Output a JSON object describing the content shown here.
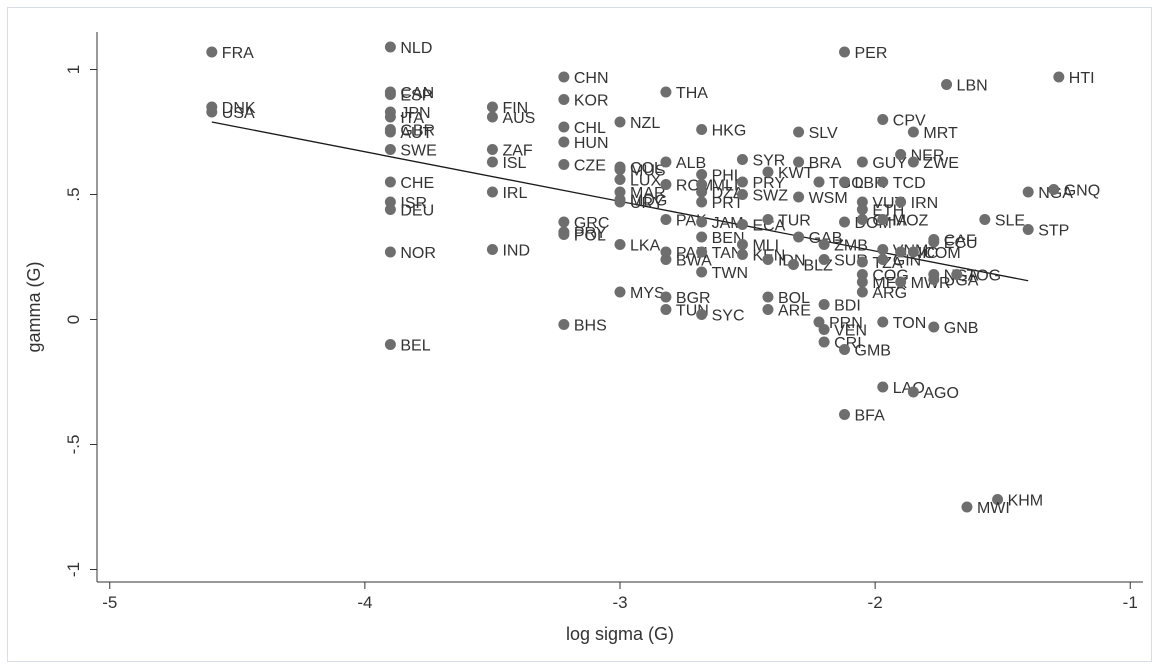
{
  "chart_data": {
    "type": "scatter",
    "xlabel": "log sigma (G)",
    "ylabel": "gamma (G)",
    "xlim": [
      -5.05,
      -0.95
    ],
    "ylim": [
      -1.05,
      1.15
    ],
    "x_ticks": [
      -5,
      -4,
      -3,
      -2,
      -1
    ],
    "x_tick_labels": [
      "-5",
      "-4",
      "-3",
      "-2",
      "-1"
    ],
    "y_ticks": [
      -1,
      -0.5,
      0,
      0.5,
      1
    ],
    "y_tick_labels": [
      "-1",
      "-.5",
      "0",
      ".5",
      "1"
    ],
    "marker_color": "#6e6e6e",
    "line_color": "#1a1a1a",
    "grid": false,
    "fit_line": {
      "x": [
        -4.6,
        -1.4
      ],
      "y": [
        0.79,
        0.155
      ]
    },
    "points": [
      {
        "label": "FRA",
        "x": -4.6,
        "y": 1.07
      },
      {
        "label": "DNK",
        "x": -4.6,
        "y": 0.85
      },
      {
        "label": "USA",
        "x": -4.6,
        "y": 0.83
      },
      {
        "label": "NLD",
        "x": -3.9,
        "y": 1.09
      },
      {
        "label": "CAN",
        "x": -3.9,
        "y": 0.91
      },
      {
        "label": "ESP",
        "x": -3.9,
        "y": 0.9
      },
      {
        "label": "JPN",
        "x": -3.9,
        "y": 0.83
      },
      {
        "label": "ITA",
        "x": -3.9,
        "y": 0.81
      },
      {
        "label": "GBR",
        "x": -3.9,
        "y": 0.76
      },
      {
        "label": "AUT",
        "x": -3.9,
        "y": 0.75
      },
      {
        "label": "SWE",
        "x": -3.9,
        "y": 0.68
      },
      {
        "label": "CHE",
        "x": -3.9,
        "y": 0.55
      },
      {
        "label": "ISR",
        "x": -3.9,
        "y": 0.47
      },
      {
        "label": "DEU",
        "x": -3.9,
        "y": 0.44
      },
      {
        "label": "NOR",
        "x": -3.9,
        "y": 0.27
      },
      {
        "label": "BEL",
        "x": -3.9,
        "y": -0.1
      },
      {
        "label": "FIN",
        "x": -3.5,
        "y": 0.85
      },
      {
        "label": "AUS",
        "x": -3.5,
        "y": 0.81
      },
      {
        "label": "ZAF",
        "x": -3.5,
        "y": 0.68
      },
      {
        "label": "ISL",
        "x": -3.5,
        "y": 0.63
      },
      {
        "label": "IRL",
        "x": -3.5,
        "y": 0.51
      },
      {
        "label": "IND",
        "x": -3.5,
        "y": 0.28
      },
      {
        "label": "CHN",
        "x": -3.22,
        "y": 0.97
      },
      {
        "label": "KOR",
        "x": -3.22,
        "y": 0.88
      },
      {
        "label": "CHL",
        "x": -3.22,
        "y": 0.77
      },
      {
        "label": "HUN",
        "x": -3.22,
        "y": 0.71
      },
      {
        "label": "CZE",
        "x": -3.22,
        "y": 0.62
      },
      {
        "label": "GRC",
        "x": -3.22,
        "y": 0.39
      },
      {
        "label": "PRY",
        "x": -3.22,
        "y": 0.35
      },
      {
        "label": "POL",
        "x": -3.22,
        "y": 0.34
      },
      {
        "label": "BHS",
        "x": -3.22,
        "y": -0.02
      },
      {
        "label": "NZL",
        "x": -3.0,
        "y": 0.79
      },
      {
        "label": "COL",
        "x": -3.0,
        "y": 0.61
      },
      {
        "label": "MUS",
        "x": -3.0,
        "y": 0.6
      },
      {
        "label": "LUX",
        "x": -3.0,
        "y": 0.56
      },
      {
        "label": "MAR",
        "x": -3.0,
        "y": 0.51
      },
      {
        "label": "MDG",
        "x": -3.0,
        "y": 0.48
      },
      {
        "label": "URY",
        "x": -3.0,
        "y": 0.47
      },
      {
        "label": "LKA",
        "x": -3.0,
        "y": 0.3
      },
      {
        "label": "MYS",
        "x": -3.0,
        "y": 0.11
      },
      {
        "label": "THA",
        "x": -2.82,
        "y": 0.91
      },
      {
        "label": "ALB",
        "x": -2.82,
        "y": 0.63
      },
      {
        "label": "ROM",
        "x": -2.82,
        "y": 0.54
      },
      {
        "label": "PAK",
        "x": -2.82,
        "y": 0.4
      },
      {
        "label": "PAN",
        "x": -2.82,
        "y": 0.27
      },
      {
        "label": "BWA",
        "x": -2.82,
        "y": 0.24
      },
      {
        "label": "BGR",
        "x": -2.82,
        "y": 0.09
      },
      {
        "label": "TUN",
        "x": -2.82,
        "y": 0.04
      },
      {
        "label": "HKG",
        "x": -2.68,
        "y": 0.76
      },
      {
        "label": "PHL",
        "x": -2.68,
        "y": 0.58
      },
      {
        "label": "MLI",
        "x": -2.68,
        "y": 0.54
      },
      {
        "label": "DZA",
        "x": -2.68,
        "y": 0.51
      },
      {
        "label": "PRT",
        "x": -2.68,
        "y": 0.47
      },
      {
        "label": "JAM",
        "x": -2.68,
        "y": 0.39
      },
      {
        "label": "BEN",
        "x": -2.68,
        "y": 0.33
      },
      {
        "label": "TAN",
        "x": -2.68,
        "y": 0.27
      },
      {
        "label": "TWN",
        "x": -2.68,
        "y": 0.19
      },
      {
        "label": "SYC",
        "x": -2.68,
        "y": 0.02
      },
      {
        "label": "SYR",
        "x": -2.52,
        "y": 0.64
      },
      {
        "label": "PRY",
        "x": -2.52,
        "y": 0.55
      },
      {
        "label": "SWZ",
        "x": -2.52,
        "y": 0.5
      },
      {
        "label": "ECA",
        "x": -2.52,
        "y": 0.38
      },
      {
        "label": "MLI",
        "x": -2.52,
        "y": 0.3
      },
      {
        "label": "KEN",
        "x": -2.52,
        "y": 0.26
      },
      {
        "label": "SLV",
        "x": -2.3,
        "y": 0.75
      },
      {
        "label": "KWT",
        "x": -2.42,
        "y": 0.59
      },
      {
        "label": "BRA",
        "x": -2.3,
        "y": 0.63
      },
      {
        "label": "TUR",
        "x": -2.42,
        "y": 0.4
      },
      {
        "label": "GAB",
        "x": -2.3,
        "y": 0.33
      },
      {
        "label": "IDN",
        "x": -2.42,
        "y": 0.24
      },
      {
        "label": "BLZ",
        "x": -2.32,
        "y": 0.22
      },
      {
        "label": "BOL",
        "x": -2.42,
        "y": 0.09
      },
      {
        "label": "ARE",
        "x": -2.42,
        "y": 0.04
      },
      {
        "label": "PRN",
        "x": -2.22,
        "y": -0.01
      },
      {
        "label": "TGO",
        "x": -2.22,
        "y": 0.55
      },
      {
        "label": "WSM",
        "x": -2.3,
        "y": 0.49
      },
      {
        "label": "ZMB",
        "x": -2.2,
        "y": 0.3
      },
      {
        "label": "SUR",
        "x": -2.2,
        "y": 0.24
      },
      {
        "label": "BDI",
        "x": -2.2,
        "y": 0.06
      },
      {
        "label": "VEN",
        "x": -2.2,
        "y": -0.04
      },
      {
        "label": "CRI",
        "x": -2.2,
        "y": -0.09
      },
      {
        "label": "PER",
        "x": -2.12,
        "y": 1.07
      },
      {
        "label": "LBR",
        "x": -2.12,
        "y": 0.55
      },
      {
        "label": "DOM",
        "x": -2.12,
        "y": 0.39
      },
      {
        "label": "GMB",
        "x": -2.12,
        "y": -0.12
      },
      {
        "label": "BFA",
        "x": -2.12,
        "y": -0.38
      },
      {
        "label": "GUY",
        "x": -2.05,
        "y": 0.63
      },
      {
        "label": "VUT",
        "x": -2.05,
        "y": 0.47
      },
      {
        "label": "ETH",
        "x": -2.05,
        "y": 0.44
      },
      {
        "label": "GHA",
        "x": -2.05,
        "y": 0.4
      },
      {
        "label": "TZA",
        "x": -2.05,
        "y": 0.23
      },
      {
        "label": "COG",
        "x": -2.05,
        "y": 0.18
      },
      {
        "label": "MEX",
        "x": -2.05,
        "y": 0.15
      },
      {
        "label": "ARG",
        "x": -2.05,
        "y": 0.11
      },
      {
        "label": "CPV",
        "x": -1.97,
        "y": 0.8
      },
      {
        "label": "TCD",
        "x": -1.97,
        "y": 0.55
      },
      {
        "label": "MOZ",
        "x": -1.97,
        "y": 0.4
      },
      {
        "label": "VNM",
        "x": -1.97,
        "y": 0.28
      },
      {
        "label": "GIN",
        "x": -1.97,
        "y": 0.24
      },
      {
        "label": "MWR",
        "x": -1.9,
        "y": 0.15
      },
      {
        "label": "TON",
        "x": -1.97,
        "y": -0.01
      },
      {
        "label": "LAO",
        "x": -1.97,
        "y": -0.27
      },
      {
        "label": "IRN",
        "x": -1.9,
        "y": 0.47
      },
      {
        "label": "MRT",
        "x": -1.85,
        "y": 0.75
      },
      {
        "label": "NER",
        "x": -1.9,
        "y": 0.66
      },
      {
        "label": "ZWE",
        "x": -1.85,
        "y": 0.63
      },
      {
        "label": "NIC",
        "x": -1.9,
        "y": 0.27
      },
      {
        "label": "UGA",
        "x": -1.77,
        "y": 0.16
      },
      {
        "label": "AGO",
        "x": -1.85,
        "y": -0.29
      },
      {
        "label": "CAF",
        "x": -1.77,
        "y": 0.32
      },
      {
        "label": "ECU",
        "x": -1.77,
        "y": 0.31
      },
      {
        "label": "COM",
        "x": -1.85,
        "y": 0.27
      },
      {
        "label": "NGA",
        "x": -1.77,
        "y": 0.18
      },
      {
        "label": "TOG",
        "x": -1.68,
        "y": 0.18
      },
      {
        "label": "GNB",
        "x": -1.77,
        "y": -0.03
      },
      {
        "label": "LBN",
        "x": -1.72,
        "y": 0.94
      },
      {
        "label": "SLE",
        "x": -1.57,
        "y": 0.4
      },
      {
        "label": "NGA",
        "x": -1.4,
        "y": 0.51
      },
      {
        "label": "GNQ",
        "x": -1.3,
        "y": 0.52
      },
      {
        "label": "STP",
        "x": -1.4,
        "y": 0.36
      },
      {
        "label": "HTI",
        "x": -1.28,
        "y": 0.97
      },
      {
        "label": "KHM",
        "x": -1.52,
        "y": -0.72
      },
      {
        "label": "MWI",
        "x": -1.64,
        "y": -0.75
      }
    ]
  }
}
